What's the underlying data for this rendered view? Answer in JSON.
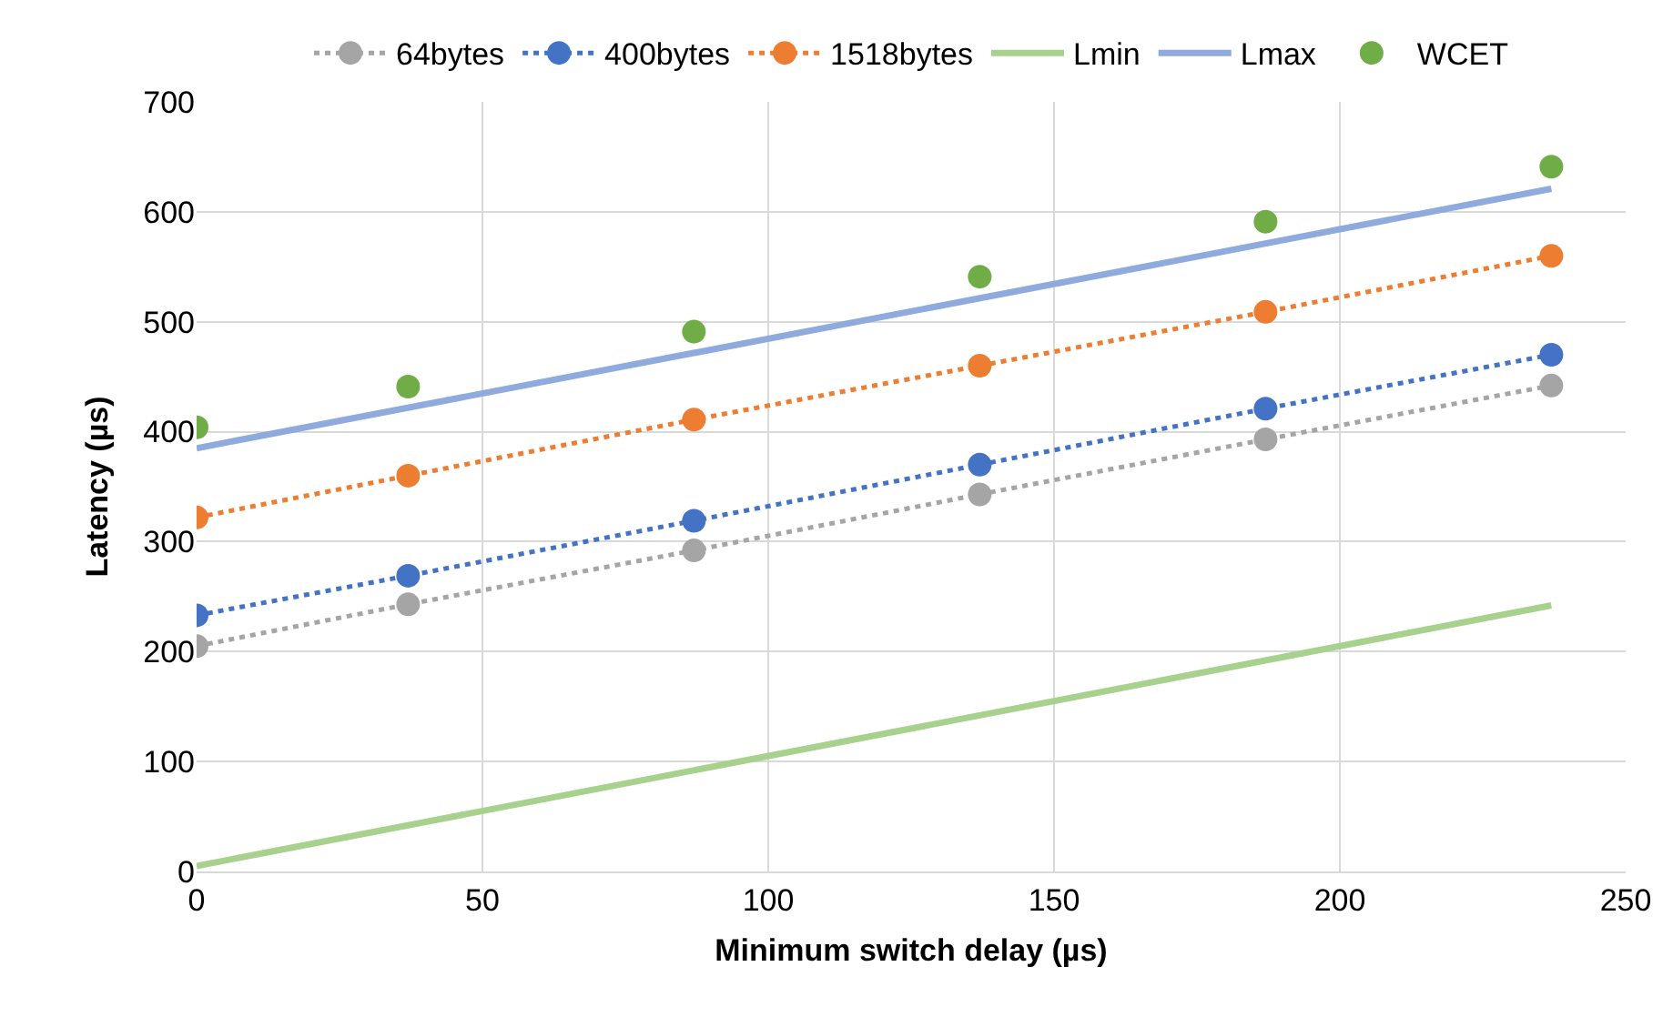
{
  "chart_data": {
    "type": "line",
    "xlabel": "Minimum switch delay (µs)",
    "ylabel": "Latency (µs)",
    "xlim": [
      0,
      250
    ],
    "xticks": [
      0,
      50,
      100,
      150,
      200,
      250
    ],
    "ylim": [
      0,
      700
    ],
    "yticks": [
      0,
      100,
      200,
      300,
      400,
      500,
      600,
      700
    ],
    "grid": true,
    "legend": "top",
    "series": [
      {
        "name": "64bytes",
        "color": "#a5a5a5",
        "marker": "circle",
        "line_style": "dotted",
        "x": [
          0,
          37,
          87,
          137,
          187,
          237
        ],
        "values": [
          205,
          243,
          292,
          343,
          393,
          442
        ]
      },
      {
        "name": "400bytes",
        "color": "#4472c4",
        "marker": "circle",
        "line_style": "dotted",
        "x": [
          0,
          37,
          87,
          137,
          187,
          237
        ],
        "values": [
          233,
          269,
          319,
          370,
          421,
          470
        ]
      },
      {
        "name": "1518bytes",
        "color": "#ed7d31",
        "marker": "circle",
        "line_style": "dotted",
        "x": [
          0,
          37,
          87,
          137,
          187,
          237
        ],
        "values": [
          322,
          360,
          411,
          460,
          509,
          560
        ]
      },
      {
        "name": "Lmin",
        "color": "#a9d18e",
        "marker": "none",
        "line_style": "solid",
        "x": [
          0,
          237
        ],
        "values": [
          5,
          242
        ]
      },
      {
        "name": "Lmax",
        "color": "#8faadc",
        "marker": "none",
        "line_style": "solid",
        "x": [
          0,
          237
        ],
        "values": [
          385,
          621
        ]
      },
      {
        "name": "WCET",
        "type": "scatter",
        "color": "#70ad47",
        "marker": "circle",
        "x": [
          0,
          37,
          87,
          137,
          187,
          237
        ],
        "values": [
          404,
          441,
          491,
          541,
          591,
          641
        ]
      }
    ]
  }
}
